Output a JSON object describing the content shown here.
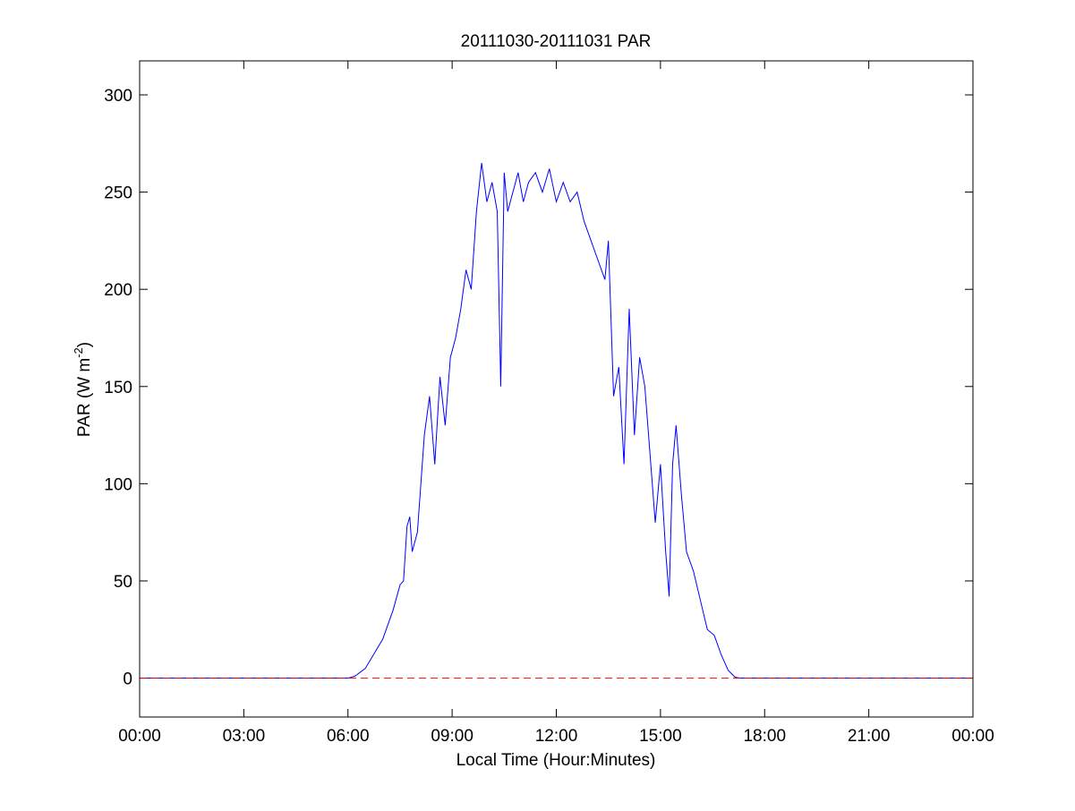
{
  "chart_data": {
    "type": "line",
    "title": "20111030-20111031 PAR",
    "xlabel": "Local Time (Hour:Minutes)",
    "ylabel": {
      "text": "PAR (W m",
      "superscript": "-2",
      "suffix": ")"
    },
    "xlim": [
      0,
      24
    ],
    "xticks": [
      {
        "value": 0,
        "label": "00:00"
      },
      {
        "value": 3,
        "label": "03:00"
      },
      {
        "value": 6,
        "label": "06:00"
      },
      {
        "value": 9,
        "label": "09:00"
      },
      {
        "value": 12,
        "label": "12:00"
      },
      {
        "value": 15,
        "label": "15:00"
      },
      {
        "value": 18,
        "label": "18:00"
      },
      {
        "value": 21,
        "label": "21:00"
      },
      {
        "value": 24,
        "label": "00:00"
      }
    ],
    "ylim": [
      -20,
      317.5
    ],
    "yticks": [
      0,
      50,
      100,
      150,
      200,
      250,
      300
    ],
    "reference_line": {
      "value": 0,
      "color": "#ff0000",
      "dashed": true
    },
    "series": [
      {
        "color": "#0000ff",
        "x": [
          0,
          6.0,
          6.2,
          6.5,
          7.0,
          7.3,
          7.5,
          7.6,
          7.7,
          7.78,
          7.85,
          8.0,
          8.2,
          8.35,
          8.5,
          8.65,
          8.8,
          8.95,
          9.1,
          9.25,
          9.4,
          9.55,
          9.7,
          9.85,
          10.0,
          10.15,
          10.3,
          10.4,
          10.5,
          10.6,
          10.75,
          10.9,
          11.05,
          11.2,
          11.4,
          11.6,
          11.8,
          12.0,
          12.2,
          12.4,
          12.6,
          12.8,
          13.0,
          13.2,
          13.4,
          13.5,
          13.65,
          13.8,
          13.95,
          14.1,
          14.25,
          14.4,
          14.55,
          14.7,
          14.85,
          15.0,
          15.15,
          15.25,
          15.35,
          15.45,
          15.6,
          15.75,
          15.95,
          16.15,
          16.35,
          16.55,
          16.75,
          16.95,
          17.15,
          17.3,
          24
        ],
        "values": [
          0,
          0,
          1,
          5,
          20,
          35,
          48,
          50,
          78,
          83,
          65,
          75,
          125,
          145,
          110,
          155,
          130,
          165,
          175,
          190,
          210,
          200,
          240,
          265,
          245,
          255,
          240,
          150,
          260,
          240,
          250,
          260,
          245,
          255,
          260,
          250,
          262,
          245,
          255,
          245,
          250,
          235,
          225,
          215,
          205,
          225,
          145,
          160,
          110,
          190,
          125,
          165,
          150,
          115,
          80,
          110,
          65,
          42,
          110,
          130,
          95,
          65,
          55,
          40,
          25,
          22,
          12,
          4,
          0.5,
          0,
          0
        ]
      }
    ]
  }
}
